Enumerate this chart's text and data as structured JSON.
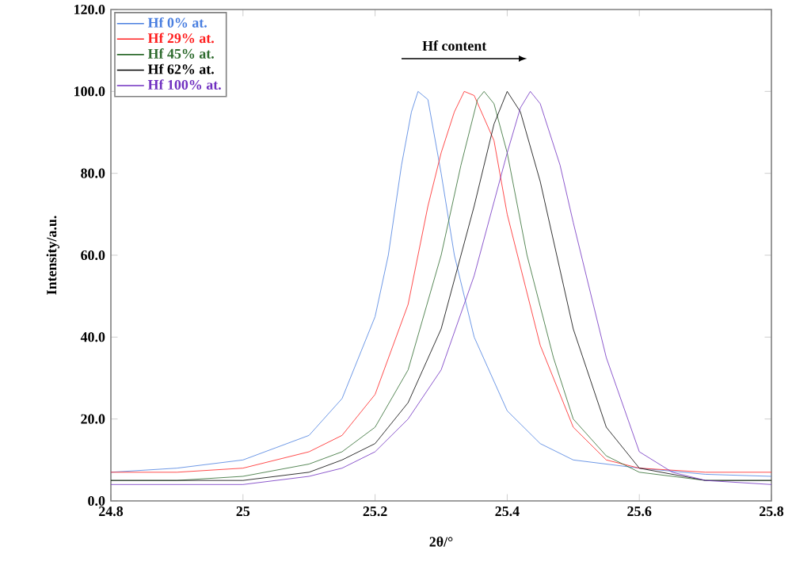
{
  "chart_data": {
    "type": "line",
    "xlabel": "2θ/°",
    "ylabel": "Intensity/a.u.",
    "xlim": [
      24.8,
      25.8
    ],
    "xticks": [
      24.8,
      25,
      25.2,
      25.4,
      25.6,
      25.8
    ],
    "ylim": [
      0,
      120
    ],
    "yticks": [
      {
        "value": 0,
        "label": "0.0"
      },
      {
        "value": 20,
        "label": "20.0"
      },
      {
        "value": 40,
        "label": "40.0"
      },
      {
        "value": 60,
        "label": "60.0"
      },
      {
        "value": 80,
        "label": "80.0"
      },
      {
        "value": 100,
        "label": "100.0"
      },
      {
        "value": 120,
        "label": "120.0"
      }
    ],
    "grid": false,
    "legend": "top left",
    "marker": "none",
    "line_style": "solid",
    "annotations": [
      "Hf content"
    ],
    "series": [
      {
        "name": "Hf 0% at.",
        "color": "#4a7fe0",
        "x": [
          24.8,
          24.9,
          25.0,
          25.05,
          25.1,
          25.15,
          25.2,
          25.22,
          25.24,
          25.255,
          25.265,
          25.28,
          25.3,
          25.32,
          25.35,
          25.4,
          25.45,
          25.5,
          25.6,
          25.7,
          25.8
        ],
        "values": [
          7,
          8,
          10,
          13,
          16,
          25,
          45,
          60,
          82,
          95,
          100,
          98,
          80,
          60,
          40,
          22,
          14,
          10,
          8,
          6.5,
          6
        ]
      },
      {
        "name": "Hf 29% at.",
        "color": "#ff2020",
        "x": [
          24.8,
          24.9,
          25.0,
          25.1,
          25.15,
          25.2,
          25.25,
          25.28,
          25.3,
          25.32,
          25.335,
          25.35,
          25.38,
          25.4,
          25.45,
          25.5,
          25.55,
          25.6,
          25.7,
          25.8
        ],
        "values": [
          7,
          7,
          8,
          12,
          16,
          26,
          48,
          72,
          85,
          95,
          100,
          99,
          88,
          70,
          38,
          18,
          10,
          8,
          7,
          7
        ]
      },
      {
        "name": "Hf 45% at.",
        "color": "#2e6b2e",
        "x": [
          24.8,
          24.9,
          25.0,
          25.1,
          25.15,
          25.2,
          25.25,
          25.3,
          25.33,
          25.355,
          25.365,
          25.38,
          25.4,
          25.43,
          25.47,
          25.5,
          25.55,
          25.6,
          25.7,
          25.8
        ],
        "values": [
          5,
          5,
          6,
          9,
          12,
          18,
          32,
          60,
          82,
          98,
          100,
          97,
          85,
          60,
          35,
          20,
          11,
          7,
          5,
          5
        ]
      },
      {
        "name": "Hf 62% at.",
        "color": "#000000",
        "x": [
          24.8,
          24.9,
          25.0,
          25.1,
          25.15,
          25.2,
          25.25,
          25.3,
          25.35,
          25.38,
          25.4,
          25.42,
          25.45,
          25.5,
          25.55,
          25.6,
          25.7,
          25.8
        ],
        "values": [
          5,
          5,
          5,
          7,
          10,
          14,
          24,
          42,
          72,
          92,
          100,
          95,
          78,
          42,
          18,
          8,
          5,
          5
        ]
      },
      {
        "name": "Hf 100% at.",
        "color": "#7030c0",
        "x": [
          24.8,
          24.9,
          25.0,
          25.1,
          25.15,
          25.2,
          25.25,
          25.3,
          25.35,
          25.4,
          25.42,
          25.435,
          25.45,
          25.48,
          25.5,
          25.55,
          25.6,
          25.65,
          25.7,
          25.8
        ],
        "values": [
          4,
          4,
          4,
          6,
          8,
          12,
          20,
          32,
          55,
          85,
          96,
          100,
          97,
          82,
          68,
          35,
          12,
          7,
          5,
          4
        ]
      }
    ]
  }
}
